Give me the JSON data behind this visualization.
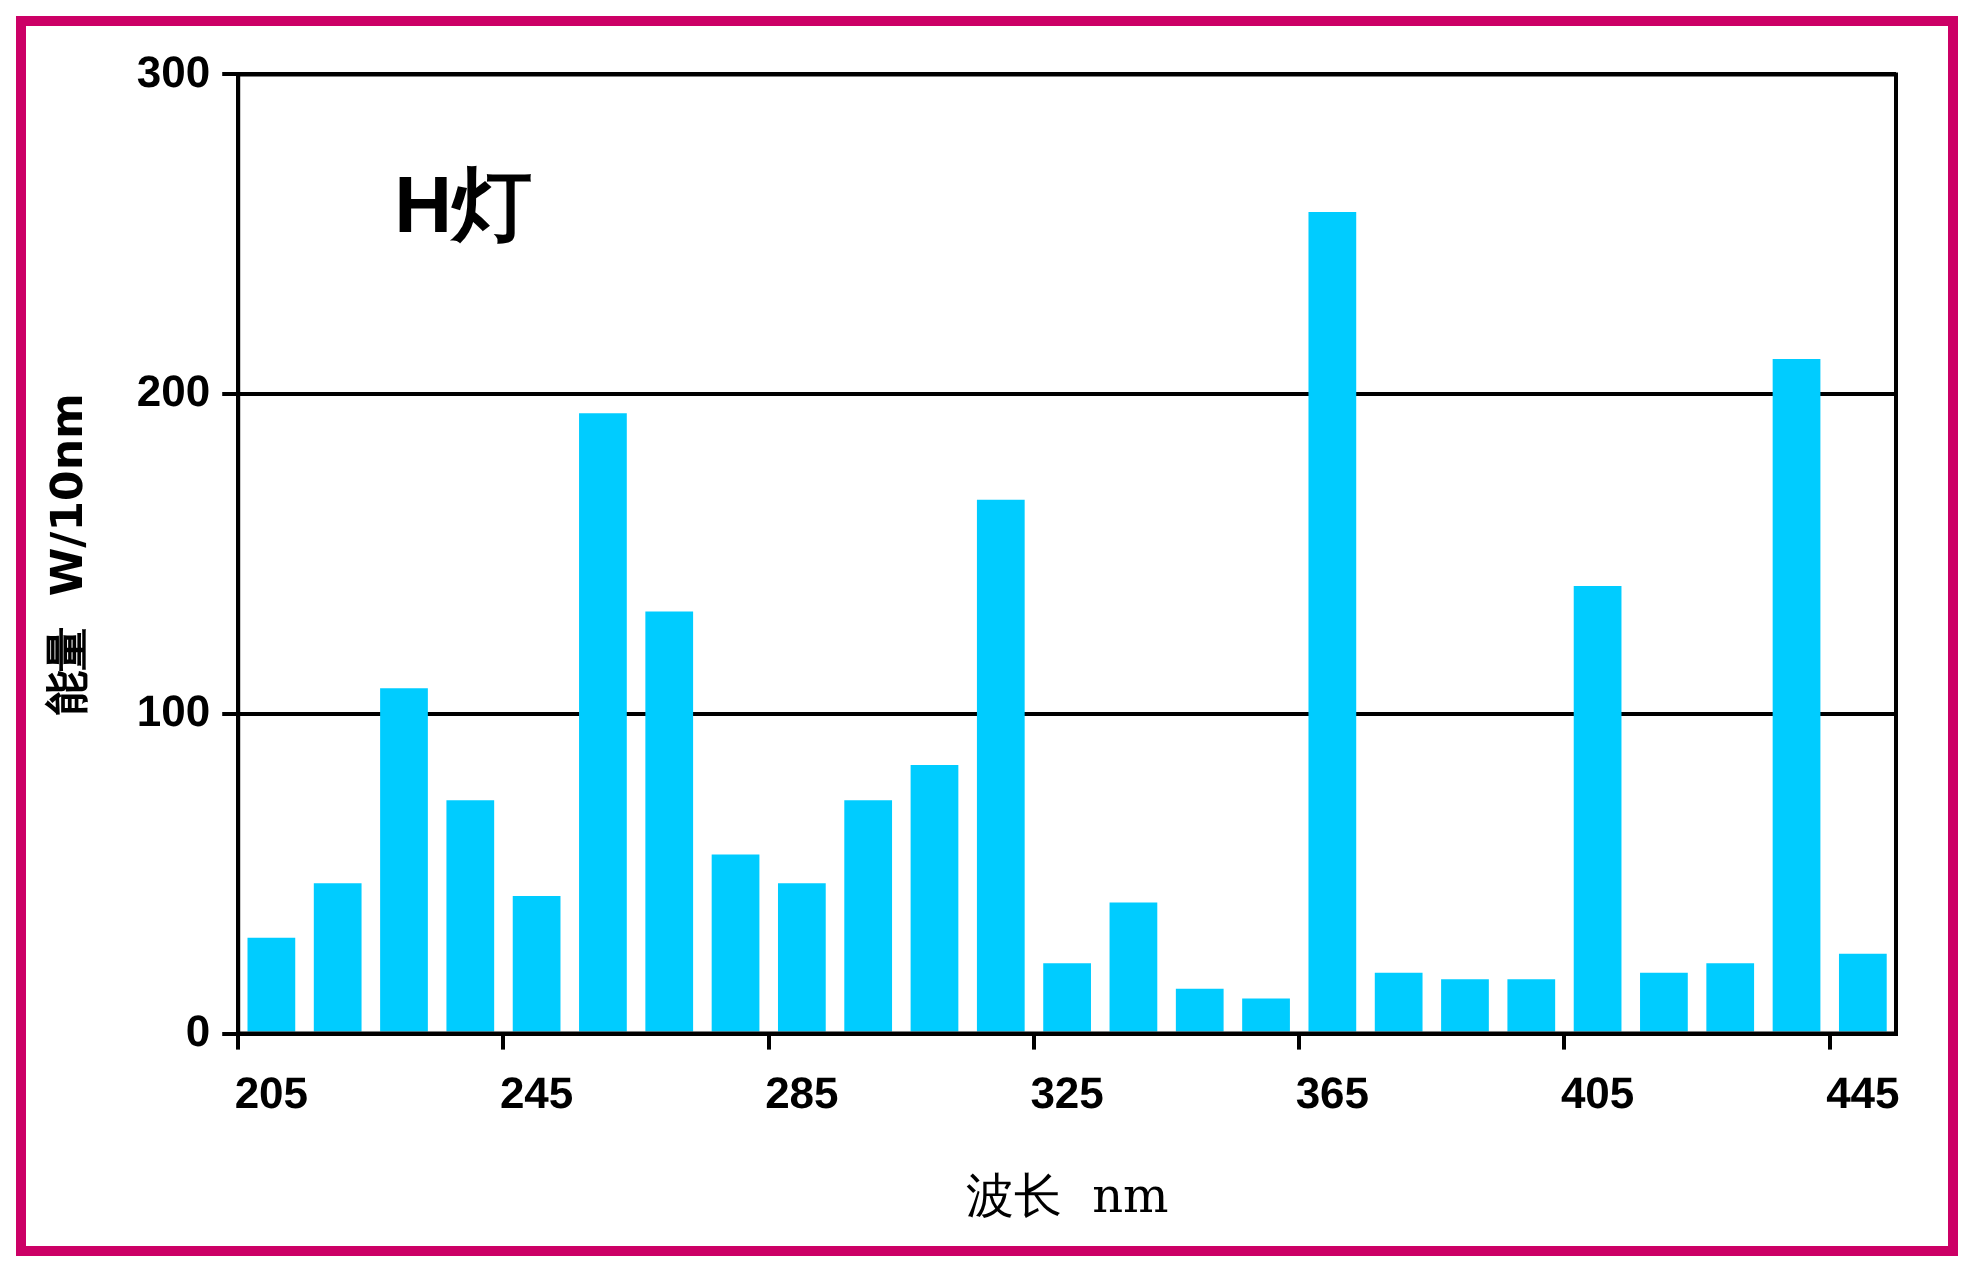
{
  "chart_data": {
    "type": "bar",
    "annotations": [
      "H灯"
    ],
    "xlabel": "波长  nm",
    "ylabel": "能量  W/10nm",
    "categories": [
      "205",
      null,
      null,
      null,
      "245",
      null,
      null,
      null,
      "285",
      null,
      null,
      null,
      "325",
      null,
      null,
      null,
      "365",
      null,
      null,
      null,
      "405",
      null,
      null,
      null,
      "445"
    ],
    "values": [
      30,
      47,
      108,
      73,
      43,
      194,
      132,
      56,
      47,
      73,
      84,
      167,
      22,
      41,
      14,
      11,
      257,
      19,
      17,
      17,
      140,
      19,
      22,
      211,
      25
    ],
    "color": "#00ccff",
    "ylim": [
      0,
      300
    ],
    "yticks": [
      0,
      100,
      200,
      300
    ],
    "grid": "y",
    "legend": false
  }
}
